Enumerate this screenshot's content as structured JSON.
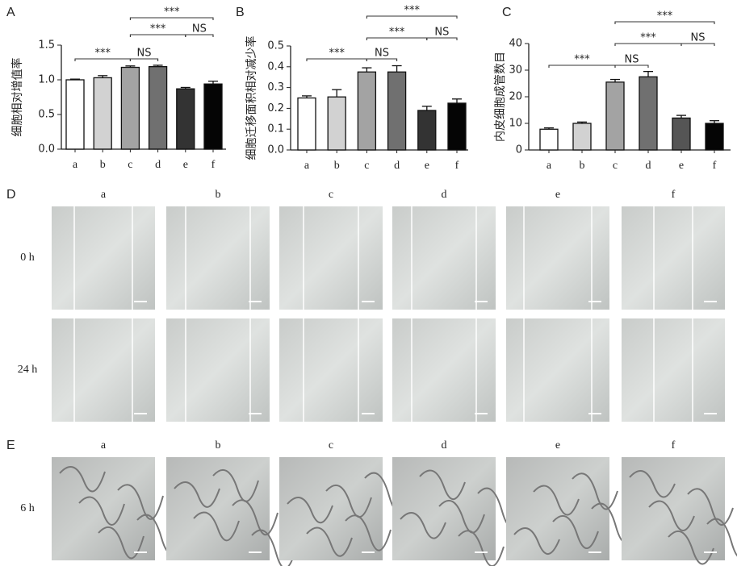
{
  "chart_data": [
    {
      "type": "bar",
      "panel": "A",
      "ylabel": "细胞相对增值率",
      "categories": [
        "a",
        "b",
        "c",
        "d",
        "e",
        "f"
      ],
      "values": [
        1.0,
        1.03,
        1.18,
        1.19,
        0.87,
        0.94
      ],
      "errors": [
        0.01,
        0.03,
        0.02,
        0.02,
        0.02,
        0.04
      ],
      "colors": [
        "#ffffff",
        "#d2d2d2",
        "#a3a3a3",
        "#707070",
        "#333333",
        "#050505"
      ],
      "ylim": [
        0,
        1.5
      ],
      "yticks": [
        {
          "value": 0,
          "label": "0.0"
        },
        0.5,
        {
          "value": 1,
          "label": "1.0"
        },
        1.5
      ],
      "annotations": [
        {
          "text": "***",
          "from": "c",
          "to": "f"
        },
        {
          "text": "***",
          "from": "c",
          "to": "e"
        },
        {
          "text": "NS",
          "from": "e",
          "to": "f"
        },
        {
          "text": "***",
          "from": "a",
          "to": "c"
        },
        {
          "text": "NS",
          "from": "c",
          "to": "d"
        }
      ]
    },
    {
      "type": "bar",
      "panel": "B",
      "ylabel": "细胞迁移面积相对减少率",
      "categories": [
        "a",
        "b",
        "c",
        "d",
        "e",
        "f"
      ],
      "values": [
        0.25,
        0.255,
        0.375,
        0.375,
        0.19,
        0.225
      ],
      "errors": [
        0.01,
        0.035,
        0.02,
        0.03,
        0.02,
        0.02
      ],
      "colors": [
        "#ffffff",
        "#d2d2d2",
        "#a3a3a3",
        "#707070",
        "#333333",
        "#050505"
      ],
      "ylim": [
        0,
        0.5
      ],
      "yticks": [
        {
          "value": 0,
          "label": "0.0"
        },
        0.1,
        0.2,
        0.3,
        0.4,
        0.5
      ],
      "annotations": [
        {
          "text": "***",
          "from": "c",
          "to": "f"
        },
        {
          "text": "***",
          "from": "c",
          "to": "e"
        },
        {
          "text": "NS",
          "from": "e",
          "to": "f"
        },
        {
          "text": "***",
          "from": "a",
          "to": "c"
        },
        {
          "text": "NS",
          "from": "c",
          "to": "d"
        }
      ]
    },
    {
      "type": "bar",
      "panel": "C",
      "ylabel": "内皮细胞成管数目",
      "categories": [
        "a",
        "b",
        "c",
        "d",
        "e",
        "f"
      ],
      "values": [
        7.8,
        10,
        25.5,
        27.5,
        12,
        10
      ],
      "errors": [
        0.5,
        0.5,
        1,
        2,
        1,
        1
      ],
      "colors": [
        "#ffffff",
        "#d2d2d2",
        "#a3a3a3",
        "#707070",
        "#555555",
        "#050505"
      ],
      "ylim": [
        0,
        40
      ],
      "yticks": [
        0,
        10,
        20,
        30,
        40
      ],
      "annotations": [
        {
          "text": "***",
          "from": "c",
          "to": "f"
        },
        {
          "text": "***",
          "from": "c",
          "to": "e"
        },
        {
          "text": "NS",
          "from": "e",
          "to": "f"
        },
        {
          "text": "***",
          "from": "a",
          "to": "c"
        },
        {
          "text": "NS",
          "from": "c",
          "to": "d"
        }
      ]
    }
  ],
  "image_panels": [
    {
      "panel": "D",
      "columns": [
        "a",
        "b",
        "c",
        "d",
        "e",
        "f"
      ],
      "rows": [
        "0 h",
        "24 h"
      ]
    },
    {
      "panel": "E",
      "columns": [
        "a",
        "b",
        "c",
        "d",
        "e",
        "f"
      ],
      "rows": [
        "6 h"
      ]
    }
  ]
}
